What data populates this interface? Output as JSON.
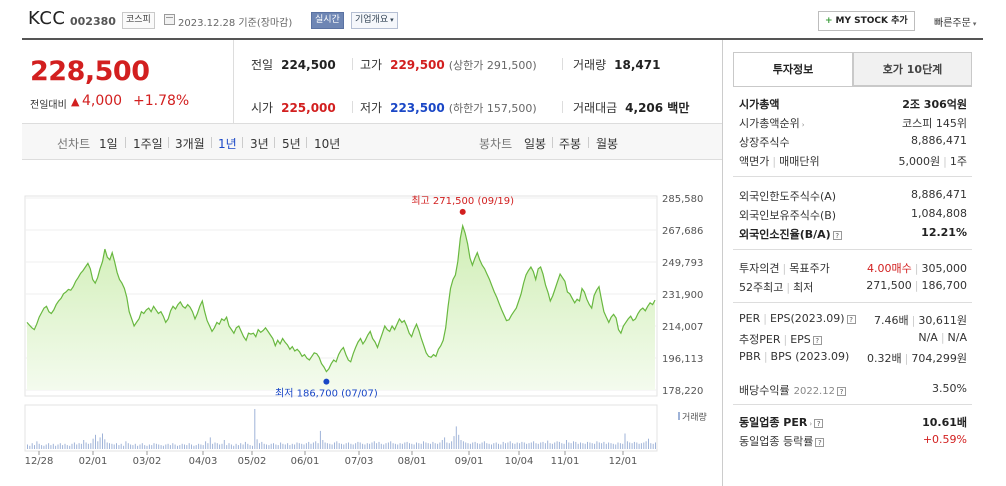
{
  "header": {
    "company_name": "KCC",
    "stock_code": "002380",
    "market": "코스피",
    "as_of_date": "2023.12.28  기준(장마감)",
    "realtime_badge": "실시간",
    "overview_dropdown": "기업개요",
    "my_stock_button": "MY STOCK 추가",
    "quick_order": "빠른주문"
  },
  "price": {
    "current": "228,500",
    "change_label": "전일대비",
    "change_arrow": "▲",
    "change_amount": "4,000",
    "change_percent": "+1.78%"
  },
  "stats": {
    "prev_close_label": "전일",
    "prev_close": "224,500",
    "high_label": "고가",
    "high": "229,500",
    "upper_limit": "(상한가 291,500)",
    "volume_label": "거래량",
    "volume": "18,471",
    "open_label": "시가",
    "open": "225,000",
    "low_label": "저가",
    "low": "223,500",
    "lower_limit": "(하한가 157,500)",
    "trade_value_label": "거래대금",
    "trade_value": "4,206 백만"
  },
  "chart_tabs": {
    "line_chart": "선차트",
    "periods": [
      "1일",
      "1주일",
      "3개월",
      "1년",
      "3년",
      "5년",
      "10년"
    ],
    "active_period": "1년",
    "candle_chart": "봉차트",
    "candles": [
      "일봉",
      "주봉",
      "월봉"
    ]
  },
  "colors": {
    "up": "#d21f1f",
    "down": "#1a47c6",
    "line": "#69b840",
    "area": "#e8f6d8"
  },
  "chart_data": {
    "type": "area",
    "ylim": [
      178220,
      285580
    ],
    "yticks": [
      "285,580",
      "267,686",
      "249,793",
      "231,900",
      "214,007",
      "196,113",
      "178,220"
    ],
    "xticks": [
      "12/28",
      "02/01",
      "03/02",
      "04/03",
      "05/02",
      "06/01",
      "07/03",
      "08/01",
      "09/01",
      "10/04",
      "11/01",
      "12/01"
    ],
    "annotations": {
      "high": "최고 271,500 (09/19)",
      "low": "최저 186,700 (07/07)"
    },
    "volume_legend": "거래량",
    "series": [
      {
        "values": [
          216000,
          214500,
          213000,
          212000,
          215000,
          219000,
          221500,
          224000,
          225000,
          222000,
          221000,
          223000,
          226000,
          228000,
          229500,
          232000,
          233000,
          234500,
          234000,
          236000,
          239000,
          241000,
          243500,
          245000,
          247000,
          249000,
          246000,
          240000,
          238000,
          241000,
          246000,
          250000,
          257000,
          252500,
          251000,
          255000,
          250000,
          244000,
          240000,
          238000,
          235000,
          230000,
          222000,
          218000,
          214000,
          216000,
          218000,
          222000,
          221000,
          223000,
          224000,
          222000,
          225000,
          223000,
          221000,
          222000,
          219500,
          216000,
          218000,
          222500,
          225000,
          223500,
          226000,
          227500,
          225000,
          224000,
          226000,
          224500,
          222000,
          218000,
          221000,
          225000,
          228000,
          222000,
          217000,
          214000,
          211000,
          213000,
          216000,
          215000,
          218000,
          217000,
          219000,
          214000,
          212000,
          210000,
          213000,
          214000,
          211000,
          208000,
          206000,
          210000,
          209500,
          210000,
          208000,
          212000,
          210500,
          211500,
          213000,
          211000,
          209000,
          207000,
          203000,
          206000,
          204000,
          207000,
          205000,
          203500,
          201000,
          202500,
          200000,
          201000,
          199500,
          197000,
          198000,
          196000,
          195000,
          197000,
          199000,
          198500,
          196500,
          193000,
          191000,
          188500,
          190000,
          193000,
          195000,
          194000,
          198000,
          200500,
          202000,
          198000,
          195000,
          194000,
          198500,
          202000,
          205000,
          207000,
          204000,
          206000,
          209000,
          211000,
          207000,
          205000,
          202000,
          206000,
          210000,
          214000,
          212000,
          211000,
          214000,
          212000,
          215000,
          218000,
          216000,
          217000,
          214000,
          210000,
          208000,
          212000,
          215000,
          211500,
          207000,
          203000,
          199000,
          197000,
          196500,
          198000,
          197000,
          201000,
          203000,
          206000,
          213000,
          225000,
          235000,
          240000,
          242500,
          250000,
          263000,
          270000,
          266000,
          260000,
          252000,
          248000,
          252000,
          255000,
          251000,
          248000,
          246000,
          243000,
          240000,
          236500,
          233000,
          230000,
          226500,
          223000,
          220000,
          217000,
          217500,
          220000,
          222000,
          224000,
          228000,
          232000,
          238000,
          242500,
          245000,
          247000,
          244500,
          240000,
          246000,
          247000,
          243000,
          237000,
          233000,
          228000,
          231000,
          235000,
          239000,
          243000,
          241000,
          239000,
          233000,
          232000,
          229500,
          227000,
          229000,
          228000,
          235000,
          233000,
          229000,
          226000,
          224000,
          231000,
          234000,
          236000,
          229000,
          222000,
          219000,
          216000,
          219000,
          220500,
          218500,
          212000,
          210000,
          214000,
          216000,
          218000,
          219500,
          217000,
          218000,
          221000,
          223000,
          224000,
          222500,
          225000,
          227000,
          226000,
          228500
        ]
      }
    ],
    "volume_values": [
      7,
      5,
      9,
      6,
      12,
      8,
      6,
      5,
      7,
      9,
      6,
      8,
      5,
      7,
      9,
      6,
      8,
      6,
      5,
      8,
      10,
      7,
      9,
      8,
      14,
      10,
      8,
      9,
      16,
      22,
      12,
      18,
      24,
      15,
      10,
      9,
      8,
      7,
      9,
      6,
      8,
      5,
      12,
      9,
      7,
      6,
      8,
      5,
      7,
      9,
      6,
      5,
      7,
      6,
      9,
      8,
      7,
      6,
      5,
      7,
      8,
      6,
      9,
      7,
      5,
      6,
      8,
      7,
      6,
      9,
      7,
      5,
      6,
      8,
      7,
      6,
      12,
      9,
      18,
      8,
      10,
      9,
      7,
      8,
      14,
      6,
      9,
      7,
      5,
      8,
      6,
      9,
      7,
      11,
      8,
      6,
      5,
      62,
      15,
      9,
      11,
      8,
      7,
      6,
      8,
      9,
      7,
      6,
      10,
      8,
      7,
      9,
      6,
      8,
      7,
      10,
      9,
      8,
      7,
      9,
      11,
      8,
      10,
      12,
      9,
      28,
      14,
      10,
      9,
      8,
      7,
      10,
      12,
      9,
      8,
      7,
      9,
      10,
      8,
      7,
      9,
      11,
      10,
      8,
      7,
      9,
      8,
      10,
      12,
      9,
      11,
      8,
      7,
      9,
      10,
      12,
      9,
      8,
      7,
      9,
      8,
      10,
      11,
      9,
      8,
      7,
      10,
      9,
      8,
      12,
      10,
      9,
      8,
      11,
      9,
      8,
      10,
      14,
      18,
      10,
      9,
      12,
      20,
      35,
      22,
      14,
      12,
      10,
      9,
      8,
      10,
      11,
      9,
      8,
      10,
      12,
      9,
      8,
      7,
      9,
      10,
      8,
      7,
      11,
      9,
      10,
      12,
      9,
      8,
      10,
      9,
      11,
      10,
      8,
      9,
      10,
      12,
      9,
      8,
      10,
      11,
      9,
      13,
      9,
      8,
      10,
      12,
      11,
      9,
      8,
      14,
      10,
      9,
      12,
      11,
      8,
      10,
      9,
      8,
      11,
      10,
      9,
      8,
      12,
      10,
      9,
      11,
      8,
      10,
      9,
      8,
      7,
      10,
      9,
      8,
      24,
      12,
      10,
      9,
      11,
      10,
      8,
      9,
      10,
      12,
      16,
      9,
      8,
      10
    ]
  },
  "info_panel": {
    "tab_invest": "투자정보",
    "tab_orderbook": "호가 10단계",
    "rows": {
      "market_cap_label": "시가총액",
      "market_cap": "2조 306억원",
      "market_cap_rank_label": "시가총액순위",
      "market_cap_rank": "코스피 145위",
      "shares_label": "상장주식수",
      "shares": "8,886,471",
      "par_label": "액면가",
      "par_sep": "|",
      "trade_unit_label": "매매단위",
      "par_value": "5,000원",
      "trade_unit": "1주",
      "foreign_limit_label": "외국인한도주식수(A)",
      "foreign_limit": "8,886,471",
      "foreign_held_label": "외국인보유주식수(B)",
      "foreign_held": "1,084,808",
      "foreign_ratio_label": "외국인소진율(B/A)",
      "foreign_ratio": "12.21%",
      "opinion_label": "투자의견",
      "target_label": "목표주가",
      "opinion": "4.00매수",
      "target": "305,000",
      "week52_label": "52주최고",
      "week52_low_label": "최저",
      "week52_high": "271,500",
      "week52_low": "186,700",
      "per_label": "PER",
      "eps_label": "EPS(2023.09)",
      "per": "7.46배",
      "eps": "30,611원",
      "est_per_label": "추정PER",
      "est_eps_label": "EPS",
      "est_per": "N/A",
      "est_eps": "N/A",
      "pbr_label": "PBR",
      "bps_label": "BPS (2023.09)",
      "pbr": "0.32배",
      "bps": "704,299원",
      "div_label": "배당수익률",
      "div_period": "2022.12",
      "div": "3.50%",
      "sector_per_label": "동일업종 PER",
      "sector_per": "10.61배",
      "sector_change_label": "동일업종 등락률",
      "sector_change": "+0.59%"
    }
  }
}
